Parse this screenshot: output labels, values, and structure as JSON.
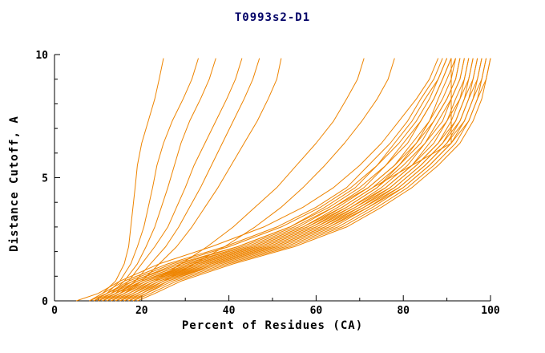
{
  "title": "T0993s2-D1",
  "chart_data": {
    "type": "line",
    "title": "T0993s2-D1",
    "xlabel": "Percent of Residues (CA)",
    "ylabel": "Distance Cutoff, A",
    "xlim": [
      0,
      100
    ],
    "ylim": [
      0,
      10
    ],
    "x_major_ticks": [
      0,
      20,
      40,
      60,
      80,
      100
    ],
    "x_minor_ticks": [
      10,
      30,
      50,
      70,
      90
    ],
    "y_major_ticks": [
      0,
      5,
      10
    ],
    "y_minor_ticks": [
      1,
      2,
      3,
      4,
      6,
      7,
      8,
      9
    ],
    "grid": false,
    "legend": "none",
    "line_color": "#ee8400",
    "title_color": "#000066",
    "axis_color": "#000000",
    "y_levels": [
      0,
      0.3,
      0.8,
      1.5,
      2.2,
      3.0,
      3.8,
      4.6,
      5.5,
      6.4,
      7.3,
      8.2,
      9.0,
      9.85
    ],
    "series_x": [
      [
        8,
        11,
        14,
        16,
        17,
        17.5,
        18,
        18.5,
        19,
        20,
        21.5,
        23,
        24,
        25
      ],
      [
        9,
        12,
        15,
        17.5,
        19,
        20.5,
        21.5,
        22.5,
        23.5,
        25,
        27,
        29.5,
        31.5,
        33
      ],
      [
        10,
        13,
        16,
        19,
        21,
        23,
        24.5,
        26,
        27.5,
        29,
        31,
        33.5,
        35.5,
        37
      ],
      [
        11,
        14,
        17,
        20,
        23,
        26,
        28,
        30,
        32,
        34.5,
        37,
        39.5,
        41.5,
        43
      ],
      [
        12,
        15,
        18.5,
        22,
        25.5,
        28.5,
        31,
        33.5,
        36,
        38.5,
        41,
        43.5,
        45.5,
        47
      ],
      [
        13,
        16,
        20,
        24,
        28,
        31.5,
        34.5,
        37.5,
        40.5,
        43.5,
        46.5,
        49,
        51,
        52
      ],
      [
        14,
        18,
        23,
        29,
        35,
        41,
        46,
        51,
        55.5,
        60,
        64,
        67,
        69.5,
        71
      ],
      [
        15,
        19,
        25,
        32,
        39,
        46,
        52,
        57,
        62,
        66.5,
        70.5,
        74,
        76.5,
        78
      ],
      [
        10,
        14,
        20,
        32,
        46,
        58,
        66,
        73,
        82,
        91,
        91,
        91,
        91,
        91
      ],
      [
        5,
        10,
        15,
        24,
        36,
        48,
        57,
        64,
        70,
        75,
        79,
        83,
        86,
        88
      ],
      [
        8,
        11,
        16,
        26,
        39,
        51,
        60,
        67,
        72,
        77,
        81,
        84,
        87,
        89
      ],
      [
        8,
        12,
        18,
        28,
        42,
        54,
        62,
        69,
        74,
        79,
        83,
        86,
        88,
        90
      ],
      [
        9,
        12,
        17,
        27,
        40,
        52,
        61,
        68,
        74,
        78,
        82,
        85,
        88,
        90
      ],
      [
        9,
        13,
        19,
        30,
        44,
        56,
        64,
        71,
        76,
        81,
        84,
        87,
        89,
        91
      ],
      [
        10,
        13,
        18,
        29,
        42,
        54,
        63,
        70,
        76,
        80,
        84,
        87,
        89,
        91
      ],
      [
        10,
        14,
        20,
        31,
        45,
        57,
        65,
        72,
        78,
        82,
        86,
        88,
        90,
        92
      ],
      [
        11,
        14,
        19,
        30,
        43,
        55,
        64,
        72,
        78,
        83,
        86,
        89,
        91,
        92
      ],
      [
        11,
        15,
        21,
        33,
        47,
        59,
        67,
        74,
        79,
        84,
        87,
        90,
        92,
        93
      ],
      [
        12,
        15,
        20,
        31,
        45,
        57,
        66,
        73,
        79,
        83,
        87,
        90,
        92,
        93
      ],
      [
        12,
        16,
        22,
        34,
        48,
        60,
        68,
        75,
        81,
        85,
        88,
        91,
        93,
        94
      ],
      [
        13,
        16,
        21,
        32,
        46,
        58,
        67,
        74,
        80,
        85,
        89,
        91,
        93,
        94
      ],
      [
        13,
        17,
        23,
        35,
        49,
        61,
        69,
        76,
        82,
        86,
        90,
        92,
        94,
        95
      ],
      [
        14,
        17,
        22,
        33,
        47,
        59,
        68,
        76,
        82,
        87,
        90,
        93,
        94,
        95
      ],
      [
        14,
        18,
        24,
        36,
        50,
        62,
        70,
        77,
        83,
        88,
        91,
        93,
        95,
        96
      ],
      [
        15,
        18,
        23,
        34,
        48,
        60,
        69,
        77,
        83,
        88,
        92,
        94,
        95,
        96
      ],
      [
        15,
        19,
        25,
        37,
        51,
        63,
        71,
        78,
        84,
        89,
        92,
        94,
        96,
        97
      ],
      [
        16,
        19,
        24,
        35,
        49,
        61,
        70,
        78,
        84,
        89,
        93,
        95,
        96,
        97
      ],
      [
        16,
        20,
        26,
        38,
        52,
        64,
        72,
        79,
        85,
        90,
        93,
        95,
        97,
        98
      ],
      [
        17,
        20,
        25,
        36,
        50,
        62,
        71,
        79,
        85,
        90,
        94,
        96,
        97,
        98
      ],
      [
        17,
        21,
        27,
        39,
        53,
        65,
        73,
        80,
        86,
        91,
        94,
        96,
        98,
        99
      ],
      [
        18,
        21,
        26,
        37,
        51,
        63,
        72,
        80,
        86,
        91,
        95,
        97,
        98,
        99
      ],
      [
        18,
        22,
        28,
        40,
        54,
        66,
        74,
        81,
        87,
        92,
        95,
        97,
        99,
        100
      ],
      [
        19,
        23,
        29,
        41,
        55,
        67,
        75,
        82,
        88,
        93,
        96,
        98,
        99,
        100
      ]
    ]
  }
}
